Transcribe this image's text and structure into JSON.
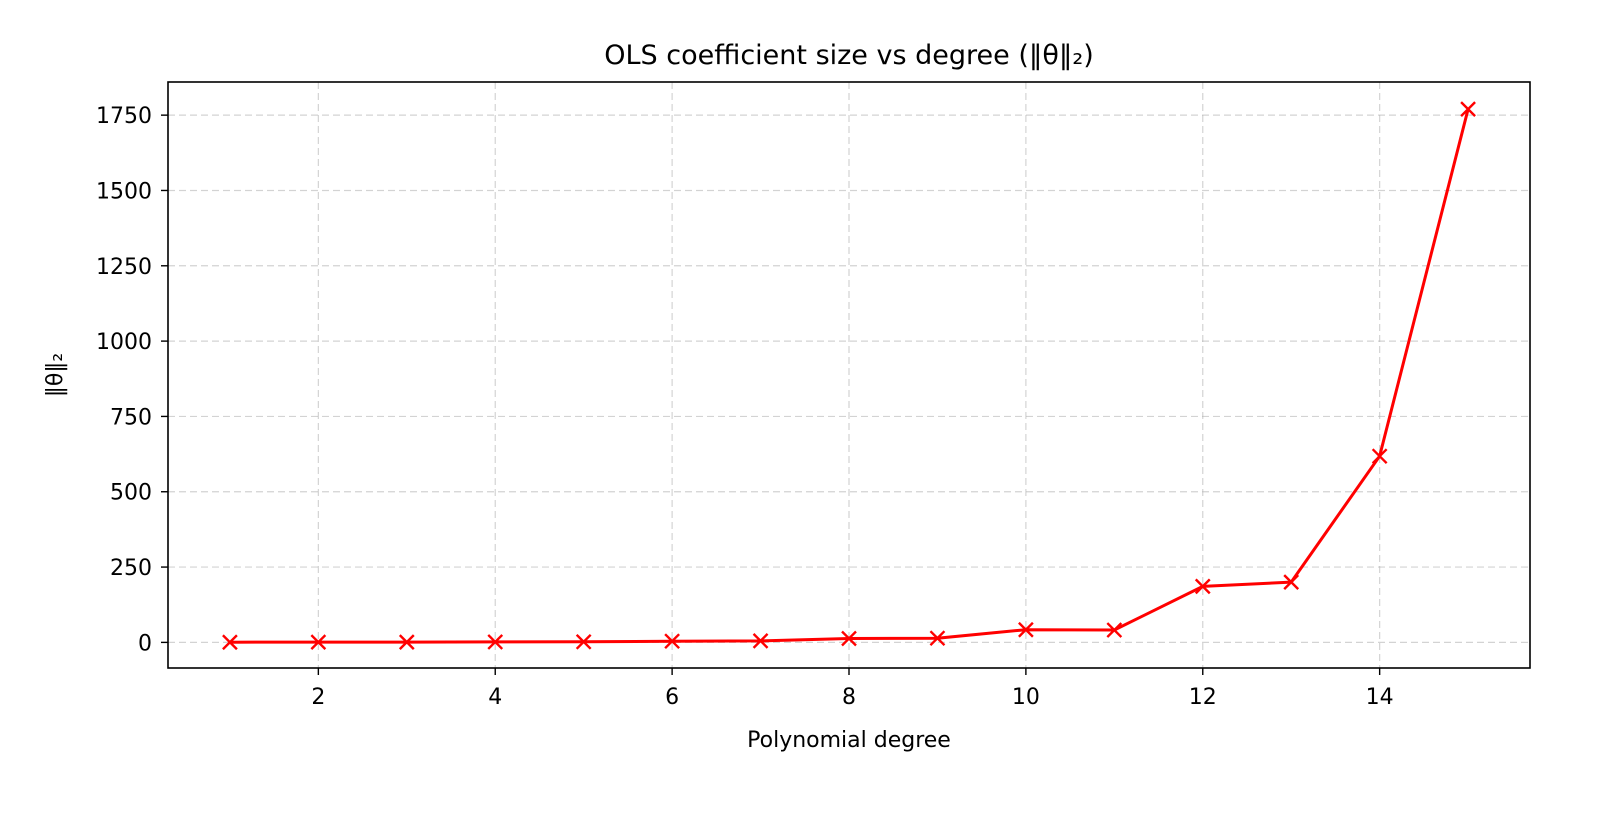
{
  "chart_data": {
    "type": "line",
    "title": "OLS coefficient size vs degree (‖θ‖₂)",
    "xlabel": "Polynomial degree",
    "ylabel": "‖θ‖₂",
    "xlim": [
      0.3,
      15.7
    ],
    "ylim": [
      -85,
      1860
    ],
    "xticks": [
      2,
      4,
      6,
      8,
      10,
      12,
      14
    ],
    "yticks": [
      0,
      250,
      500,
      750,
      1000,
      1250,
      1500,
      1750
    ],
    "grid": true,
    "color": "#ff0000",
    "marker": "x",
    "series": [
      {
        "x": [
          1,
          2,
          3,
          4,
          5,
          6,
          7,
          8,
          9,
          10,
          11,
          12,
          13,
          14,
          15
        ],
        "values": [
          0.5,
          0.8,
          1,
          1.5,
          2,
          4,
          5,
          13,
          14,
          42,
          41,
          186,
          200,
          618,
          1770
        ]
      }
    ]
  }
}
